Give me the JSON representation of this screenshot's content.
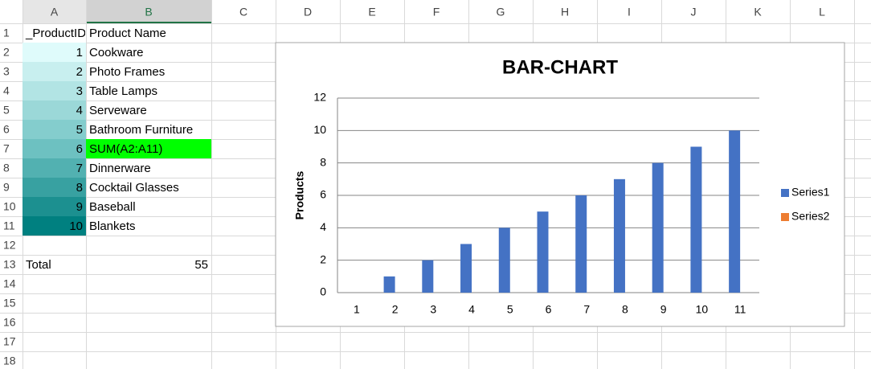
{
  "sheet": {
    "columns": [
      "A",
      "B",
      "C",
      "D",
      "E",
      "F",
      "G",
      "H",
      "I",
      "J",
      "K",
      "L"
    ],
    "rows": [
      1,
      2,
      3,
      4,
      5,
      6,
      7,
      8,
      9,
      10,
      11,
      12,
      13,
      14,
      15,
      16,
      17,
      18
    ],
    "cells": [
      [
        "_ProductID",
        "Product Name"
      ],
      [
        1,
        "Cookware"
      ],
      [
        2,
        "Photo Frames"
      ],
      [
        3,
        "Table Lamps"
      ],
      [
        4,
        "Serveware"
      ],
      [
        5,
        "Bathroom Furniture"
      ],
      [
        6,
        "SUM(A2:A11)"
      ],
      [
        7,
        "Dinnerware"
      ],
      [
        8,
        "Cocktail Glasses"
      ],
      [
        9,
        "Baseball"
      ],
      [
        10,
        "Blankets"
      ],
      [
        null,
        null
      ],
      [
        "Total",
        55
      ]
    ],
    "column_a_fills": [
      "#dffbfb",
      "#c8efef",
      "#b2e4e4",
      "#9bd8d8",
      "#84cdcd",
      "#6dc1c1",
      "#52b1b1",
      "#38a1a1",
      "#1c9090",
      "#008080"
    ],
    "highlight_fill": "#00ff00"
  },
  "chart_data": {
    "type": "bar",
    "title": "BAR-CHART",
    "ylabel": "Products",
    "categories": [
      "1",
      "2",
      "3",
      "4",
      "5",
      "6",
      "7",
      "8",
      "9",
      "10",
      "11"
    ],
    "series": [
      {
        "name": "Series1",
        "color": "#4472c4",
        "values": [
          0,
          1,
          2,
          3,
          4,
          5,
          6,
          7,
          8,
          9,
          10
        ]
      },
      {
        "name": "Series2",
        "color": "#ed7d31",
        "values": [
          0,
          0,
          0,
          0,
          0,
          0,
          0,
          0,
          0,
          0,
          0
        ]
      }
    ],
    "ylim": [
      0,
      12
    ],
    "yticks": [
      0,
      2,
      4,
      6,
      8,
      10,
      12
    ],
    "grid": true,
    "legend": "right"
  }
}
